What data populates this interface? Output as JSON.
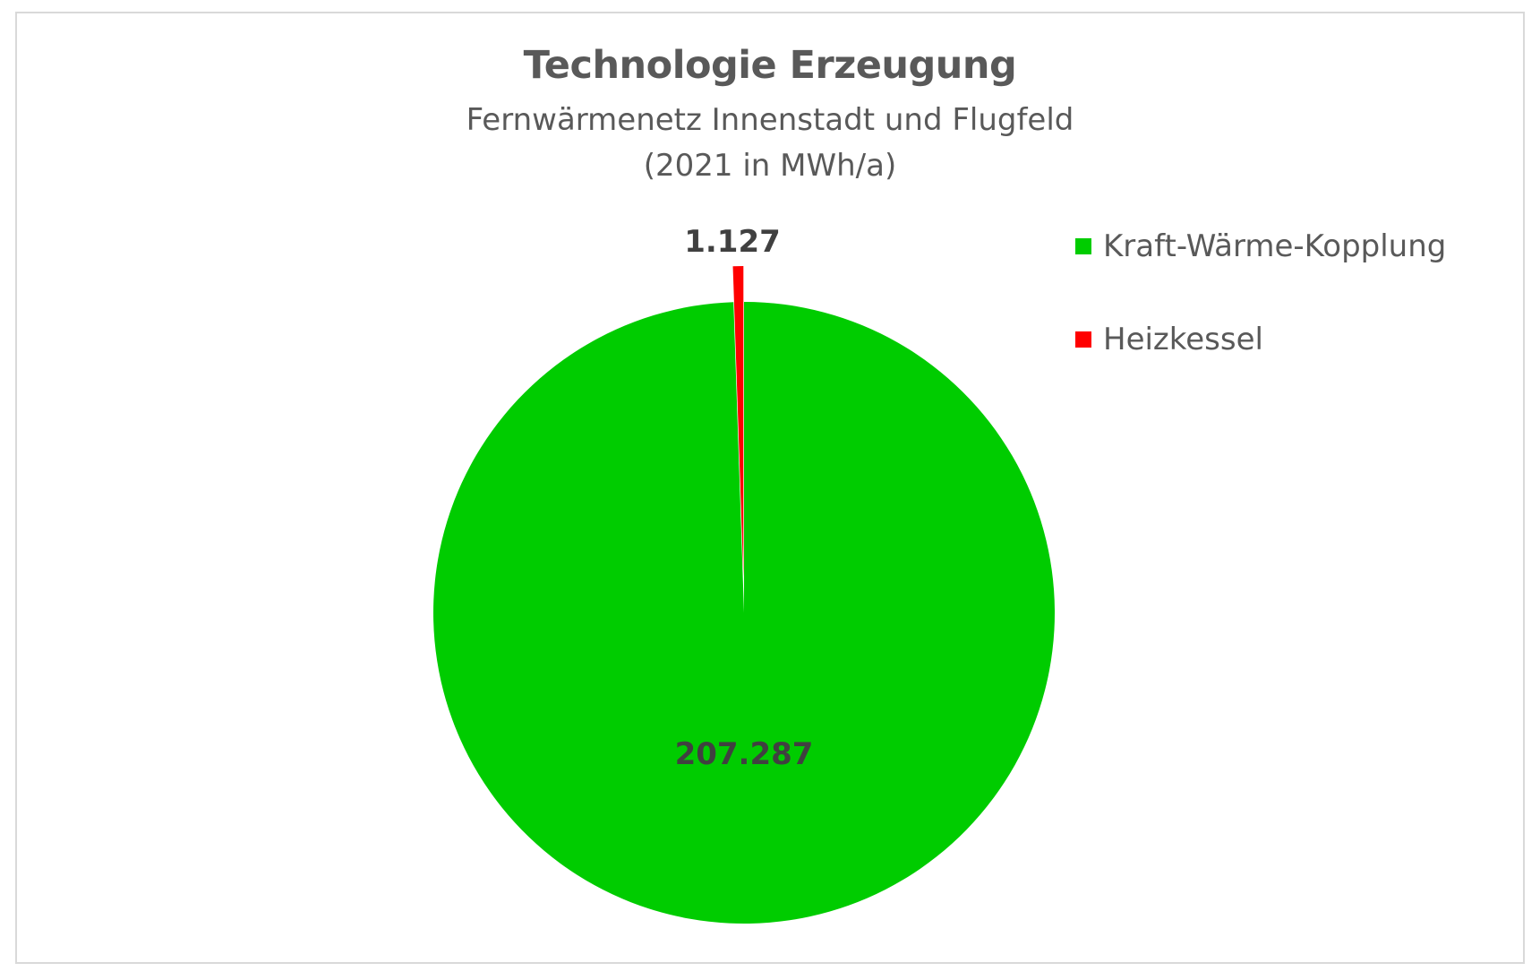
{
  "chart_data": {
    "type": "pie",
    "title": "Technologie Erzeugung",
    "subtitle": [
      "Fernwärmenetz Innenstadt und Flugfeld",
      "(2021 in MWh/a)"
    ],
    "categories": [
      "Kraft-Wärme-Kopplung",
      "Heizkessel"
    ],
    "values": [
      207287,
      1127
    ],
    "data_labels": [
      "207.287",
      "1.127"
    ],
    "colors": [
      "#00CC00",
      "#FF0000"
    ],
    "legend_position": "right",
    "exploded": [
      "Heizkessel"
    ]
  },
  "chart": {
    "title": "Technologie Erzeugung",
    "subtitle_line1": "Fernwärmenetz Innenstadt und Flugfeld",
    "subtitle_line2": "(2021 in MWh/a)",
    "labels": {
      "kwk": "207.287",
      "heizkessel": "1.127"
    },
    "legend": [
      {
        "label": "Kraft-Wärme-Kopplung",
        "color": "#00CC00"
      },
      {
        "label": "Heizkessel",
        "color": "#FF0000"
      }
    ]
  }
}
